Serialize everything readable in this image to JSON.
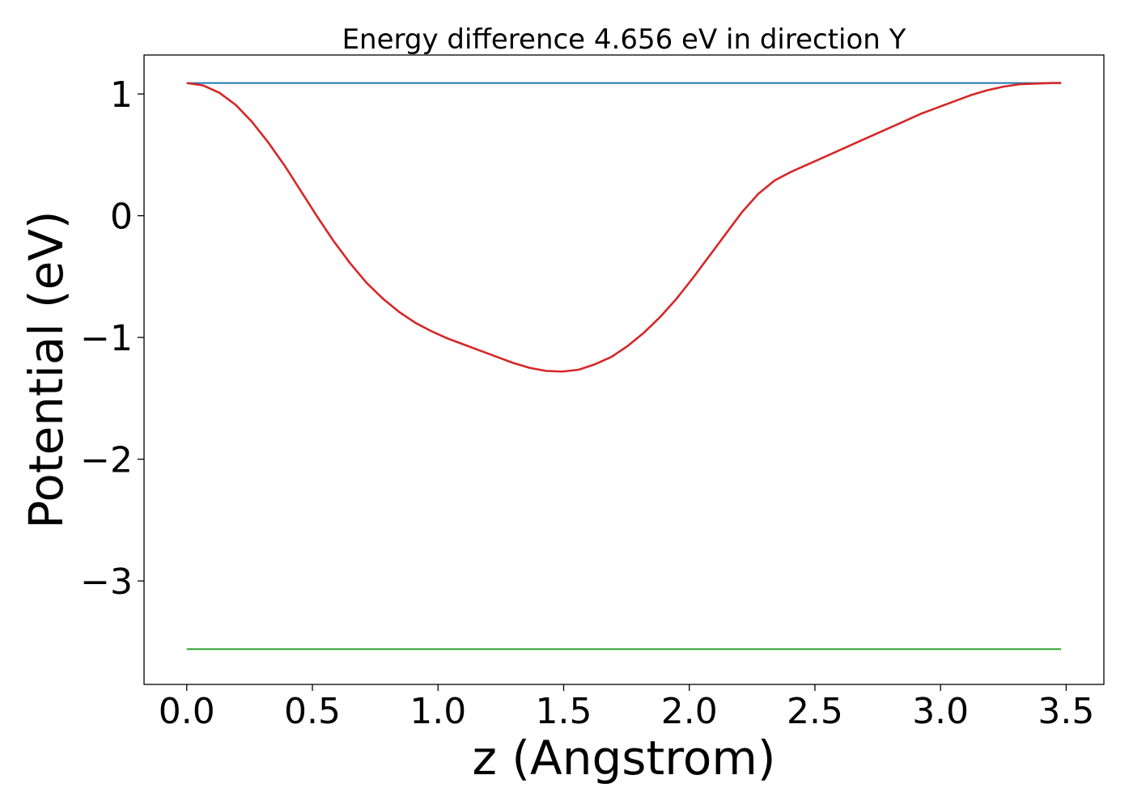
{
  "chart_data": {
    "type": "line",
    "title": "Energy difference 4.656 eV in direction Y",
    "xlabel": "z (Angstrom)",
    "ylabel": "Potential (eV)",
    "xlim": [
      -0.17,
      3.65
    ],
    "ylim": [
      -3.85,
      1.32
    ],
    "x_ticks": [
      0.0,
      0.5,
      1.0,
      1.5,
      2.0,
      2.5,
      3.0,
      3.5
    ],
    "x_tick_labels": [
      "0.0",
      "0.5",
      "1.0",
      "1.5",
      "2.0",
      "2.5",
      "3.0",
      "3.5"
    ],
    "y_ticks": [
      1,
      0,
      -1,
      -2,
      -3
    ],
    "y_tick_labels": [
      "1",
      "0",
      "−1",
      "−2",
      "−3"
    ],
    "grid": false,
    "series": [
      {
        "color": "#1f77b4",
        "x": [
          0.0,
          3.48
        ],
        "y": [
          1.09,
          1.09
        ]
      },
      {
        "color": "#2ca02c",
        "x": [
          0.0,
          3.48
        ],
        "y": [
          -3.56,
          -3.56
        ]
      },
      {
        "color": "#d62728",
        "x": [
          0.0,
          0.065,
          0.13,
          0.195,
          0.26,
          0.325,
          0.39,
          0.455,
          0.52,
          0.585,
          0.65,
          0.715,
          0.78,
          0.845,
          0.91,
          0.975,
          1.04,
          1.105,
          1.17,
          1.235,
          1.3,
          1.365,
          1.43,
          1.495,
          1.56,
          1.625,
          1.69,
          1.755,
          1.82,
          1.885,
          1.95,
          2.015,
          2.08,
          2.145,
          2.21,
          2.275,
          2.34,
          2.405,
          2.47,
          2.535,
          2.6,
          2.665,
          2.73,
          2.795,
          2.86,
          2.925,
          2.99,
          3.055,
          3.12,
          3.185,
          3.25,
          3.315,
          3.38,
          3.445,
          3.48
        ],
        "y": [
          1.09,
          1.07,
          1.01,
          0.91,
          0.77,
          0.6,
          0.41,
          0.2,
          -0.01,
          -0.21,
          -0.39,
          -0.55,
          -0.68,
          -0.79,
          -0.88,
          -0.95,
          -1.01,
          -1.06,
          -1.11,
          -1.16,
          -1.21,
          -1.25,
          -1.275,
          -1.28,
          -1.265,
          -1.22,
          -1.16,
          -1.07,
          -0.96,
          -0.83,
          -0.68,
          -0.51,
          -0.33,
          -0.15,
          0.03,
          0.18,
          0.29,
          0.36,
          0.42,
          0.48,
          0.54,
          0.6,
          0.66,
          0.72,
          0.78,
          0.84,
          0.89,
          0.94,
          0.99,
          1.03,
          1.06,
          1.08,
          1.085,
          1.09,
          1.09
        ]
      }
    ]
  }
}
